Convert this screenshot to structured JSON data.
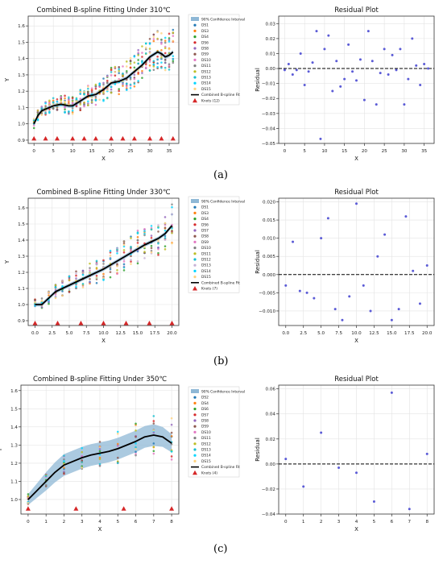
{
  "panel_labels": [
    "(a)",
    "(b)",
    "(c)"
  ],
  "chart_data": [
    {
      "type": "scatter",
      "title": "Combined B-spline Fitting Under 310℃",
      "xlabel": "X",
      "ylabel": "Y",
      "xlim": [
        -1.5,
        37.5
      ],
      "ylim": [
        0.88,
        1.66
      ],
      "xticks": [
        0,
        5,
        10,
        15,
        20,
        25,
        30,
        35
      ],
      "yticks": [
        0.9,
        1.0,
        1.1,
        1.2,
        1.3,
        1.4,
        1.5,
        1.6
      ],
      "grid": true,
      "legend_position": "right",
      "band_label": "90% Confidence Interval",
      "fit_label": "Combined B-spline Fit",
      "knots_label": "Knots (12)",
      "series_names": [
        "DS1",
        "DS3",
        "DS4",
        "DS6",
        "DS8",
        "DS9",
        "DS10",
        "DS11",
        "DS12",
        "DS13",
        "DS14",
        "DS15"
      ],
      "series_colors": [
        "#1f77b4",
        "#ff7f0e",
        "#2ca02c",
        "#d62728",
        "#9467bd",
        "#8c564b",
        "#e377c2",
        "#7f7f7f",
        "#bcbd22",
        "#17becf",
        "#00d5ff",
        "#ffd27f"
      ],
      "points_x_max": 36,
      "fit": {
        "x": [
          0,
          1,
          2,
          3,
          5,
          7,
          9,
          10,
          12,
          14,
          16,
          18,
          20,
          22,
          24,
          26,
          28,
          30,
          32,
          33,
          34,
          35,
          36
        ],
        "y": [
          1.0,
          1.05,
          1.08,
          1.09,
          1.11,
          1.12,
          1.11,
          1.11,
          1.14,
          1.17,
          1.18,
          1.21,
          1.25,
          1.26,
          1.28,
          1.32,
          1.36,
          1.41,
          1.44,
          1.43,
          1.41,
          1.42,
          1.44
        ]
      },
      "knots_x": [
        0,
        3,
        6,
        10,
        13,
        16,
        20,
        23,
        26,
        30,
        33,
        36
      ],
      "knots_y": 0.91
    },
    {
      "type": "scatter",
      "title": "Residual Plot",
      "xlabel": "X",
      "ylabel": "Residual",
      "xlim": [
        -1.5,
        37.5
      ],
      "ylim": [
        -0.05,
        0.035
      ],
      "xticks": [
        0,
        5,
        10,
        15,
        20,
        25,
        30,
        35
      ],
      "yticks": [
        -0.05,
        -0.04,
        -0.03,
        -0.02,
        -0.01,
        0.0,
        0.01,
        0.02,
        0.03
      ],
      "ytick_labels": [
        "−0.05",
        "−0.04",
        "−0.03",
        "−0.02",
        "−0.01",
        "0.00",
        "0.01",
        "0.02",
        "0.03"
      ],
      "grid": true,
      "x": [
        0,
        1,
        2,
        3,
        4,
        5,
        6,
        7,
        8,
        9,
        10,
        11,
        12,
        13,
        14,
        15,
        16,
        17,
        18,
        19,
        20,
        21,
        22,
        23,
        24,
        25,
        26,
        27,
        28,
        29,
        30,
        31,
        32,
        33,
        34,
        35,
        36
      ],
      "y": [
        -0.001,
        0.003,
        -0.004,
        -0.001,
        0.01,
        -0.011,
        -0.002,
        0.004,
        0.025,
        -0.047,
        0.013,
        0.022,
        -0.015,
        0.005,
        -0.012,
        -0.007,
        0.016,
        -0.002,
        -0.008,
        0.006,
        -0.021,
        0.025,
        0.005,
        -0.024,
        -0.003,
        0.013,
        -0.004,
        0.009,
        -0.001,
        0.013,
        -0.024,
        -0.007,
        0.02,
        0.002,
        -0.011,
        0.003,
        0.0
      ]
    },
    {
      "type": "scatter",
      "title": "Combined B-spline Fitting Under 330℃",
      "xlabel": "X",
      "ylabel": "Y",
      "xlim": [
        -1,
        21
      ],
      "ylim": [
        0.87,
        1.66
      ],
      "xticks": [
        0,
        2.5,
        5,
        7.5,
        10,
        12.5,
        15,
        17.5,
        20
      ],
      "xtick_labels": [
        "0.0",
        "2.5",
        "5.0",
        "7.5",
        "10.0",
        "12.5",
        "15.0",
        "17.5",
        "20.0"
      ],
      "yticks": [
        0.9,
        1.0,
        1.1,
        1.2,
        1.3,
        1.4,
        1.5,
        1.6
      ],
      "grid": true,
      "legend_position": "right",
      "band_label": "90% Confidence Interval",
      "fit_label": "Combined B-spline Fit",
      "knots_label": "Knots (7)",
      "series_names": [
        "DS1",
        "DS3",
        "DS4",
        "DS6",
        "DS7",
        "DS8",
        "DS9",
        "DS10",
        "DS11",
        "DS12",
        "DS13",
        "DS14",
        "DS15"
      ],
      "series_colors": [
        "#1f77b4",
        "#ff7f0e",
        "#2ca02c",
        "#d62728",
        "#9467bd",
        "#8c564b",
        "#e377c2",
        "#7f7f7f",
        "#bcbd22",
        "#17becf",
        "#c5b0d5",
        "#00d5ff",
        "#ffd27f"
      ],
      "points_x_max": 20,
      "fit": {
        "x": [
          0,
          1,
          2,
          3,
          4,
          5,
          6,
          8,
          10,
          12,
          14,
          16,
          18,
          19,
          20
        ],
        "y": [
          1.0,
          1.0,
          1.04,
          1.08,
          1.1,
          1.12,
          1.14,
          1.18,
          1.22,
          1.27,
          1.32,
          1.37,
          1.41,
          1.44,
          1.49
        ]
      },
      "knots_x": [
        0,
        3.3,
        6.7,
        10,
        13.3,
        16.7,
        20
      ],
      "knots_y": 0.885
    },
    {
      "type": "scatter",
      "title": "Residual Plot",
      "xlabel": "X",
      "ylabel": "Residual",
      "xlim": [
        -1,
        21
      ],
      "ylim": [
        -0.014,
        0.021
      ],
      "xticks": [
        0,
        2.5,
        5,
        7.5,
        10,
        12.5,
        15,
        17.5,
        20
      ],
      "xtick_labels": [
        "0.0",
        "2.5",
        "5.0",
        "7.5",
        "10.0",
        "12.5",
        "15.0",
        "17.5",
        "20.0"
      ],
      "yticks": [
        -0.01,
        -0.005,
        0.0,
        0.005,
        0.01,
        0.015,
        0.02
      ],
      "ytick_labels": [
        "−0.010",
        "−0.005",
        "0.000",
        "0.005",
        "0.010",
        "0.015",
        "0.020"
      ],
      "grid": true,
      "x": [
        0,
        1,
        2,
        3,
        4,
        5,
        6,
        7,
        8,
        9,
        10,
        11,
        12,
        13,
        14,
        15,
        16,
        17,
        18,
        19,
        20
      ],
      "y": [
        -0.003,
        0.009,
        -0.0045,
        -0.005,
        -0.0065,
        0.01,
        0.0155,
        -0.0095,
        -0.0125,
        -0.006,
        0.0195,
        -0.003,
        -0.01,
        0.005,
        0.011,
        -0.0125,
        -0.0095,
        0.016,
        0.001,
        -0.008,
        0.0025
      ]
    },
    {
      "type": "scatter",
      "title": "Combined B-spline Fitting Under 350℃",
      "xlabel": "X",
      "ylabel": "Y",
      "xlim": [
        -0.4,
        8.4
      ],
      "ylim": [
        0.92,
        1.63
      ],
      "xticks": [
        0,
        1,
        2,
        3,
        4,
        5,
        6,
        7,
        8
      ],
      "yticks": [
        1.0,
        1.1,
        1.2,
        1.3,
        1.4,
        1.5,
        1.6
      ],
      "grid": true,
      "legend_position": "right",
      "band_label": "90% Confidence Interval",
      "fit_label": "Combined B-spline Fit",
      "knots_label": "Knots (4)",
      "series_names": [
        "DS2",
        "DS4",
        "DS6",
        "DS7",
        "DS8",
        "DS9",
        "DS10",
        "DS11",
        "DS12",
        "DS13",
        "DS14",
        "DS15"
      ],
      "series_colors": [
        "#1f77b4",
        "#ff7f0e",
        "#2ca02c",
        "#d62728",
        "#9467bd",
        "#8c564b",
        "#e377c2",
        "#7f7f7f",
        "#bcbd22",
        "#17becf",
        "#00d5ff",
        "#ffd27f"
      ],
      "points_x_max": 8,
      "fit": {
        "x": [
          0,
          0.5,
          1,
          1.5,
          2,
          2.5,
          3,
          3.5,
          4,
          4.5,
          5,
          5.5,
          6,
          6.5,
          7,
          7.5,
          8
        ],
        "y": [
          1.0,
          1.05,
          1.1,
          1.15,
          1.19,
          1.21,
          1.23,
          1.245,
          1.255,
          1.265,
          1.28,
          1.3,
          1.32,
          1.345,
          1.355,
          1.345,
          1.31
        ]
      },
      "band_halfwidth": [
        0.03,
        0.04,
        0.05,
        0.055,
        0.06,
        0.06,
        0.06,
        0.06,
        0.06,
        0.06,
        0.06,
        0.06,
        0.06,
        0.06,
        0.06,
        0.055,
        0.05
      ],
      "knots_x": [
        0,
        2.67,
        5.33,
        8
      ],
      "knots_y": 0.95
    },
    {
      "type": "scatter",
      "title": "Residual Plot",
      "xlabel": "X",
      "ylabel": "Residual",
      "xlim": [
        -0.4,
        8.4
      ],
      "ylim": [
        -0.04,
        0.063
      ],
      "xticks": [
        0,
        1,
        2,
        3,
        4,
        5,
        6,
        7,
        8
      ],
      "yticks": [
        -0.04,
        -0.02,
        0.0,
        0.02,
        0.04,
        0.06
      ],
      "ytick_labels": [
        "−0.04",
        "−0.02",
        "0.00",
        "0.02",
        "0.04",
        "0.06"
      ],
      "grid": true,
      "x": [
        0,
        1,
        2,
        3,
        4,
        5,
        6,
        7,
        8
      ],
      "y": [
        0.004,
        -0.018,
        0.025,
        -0.003,
        -0.007,
        -0.03,
        0.057,
        -0.036,
        0.008
      ]
    }
  ]
}
